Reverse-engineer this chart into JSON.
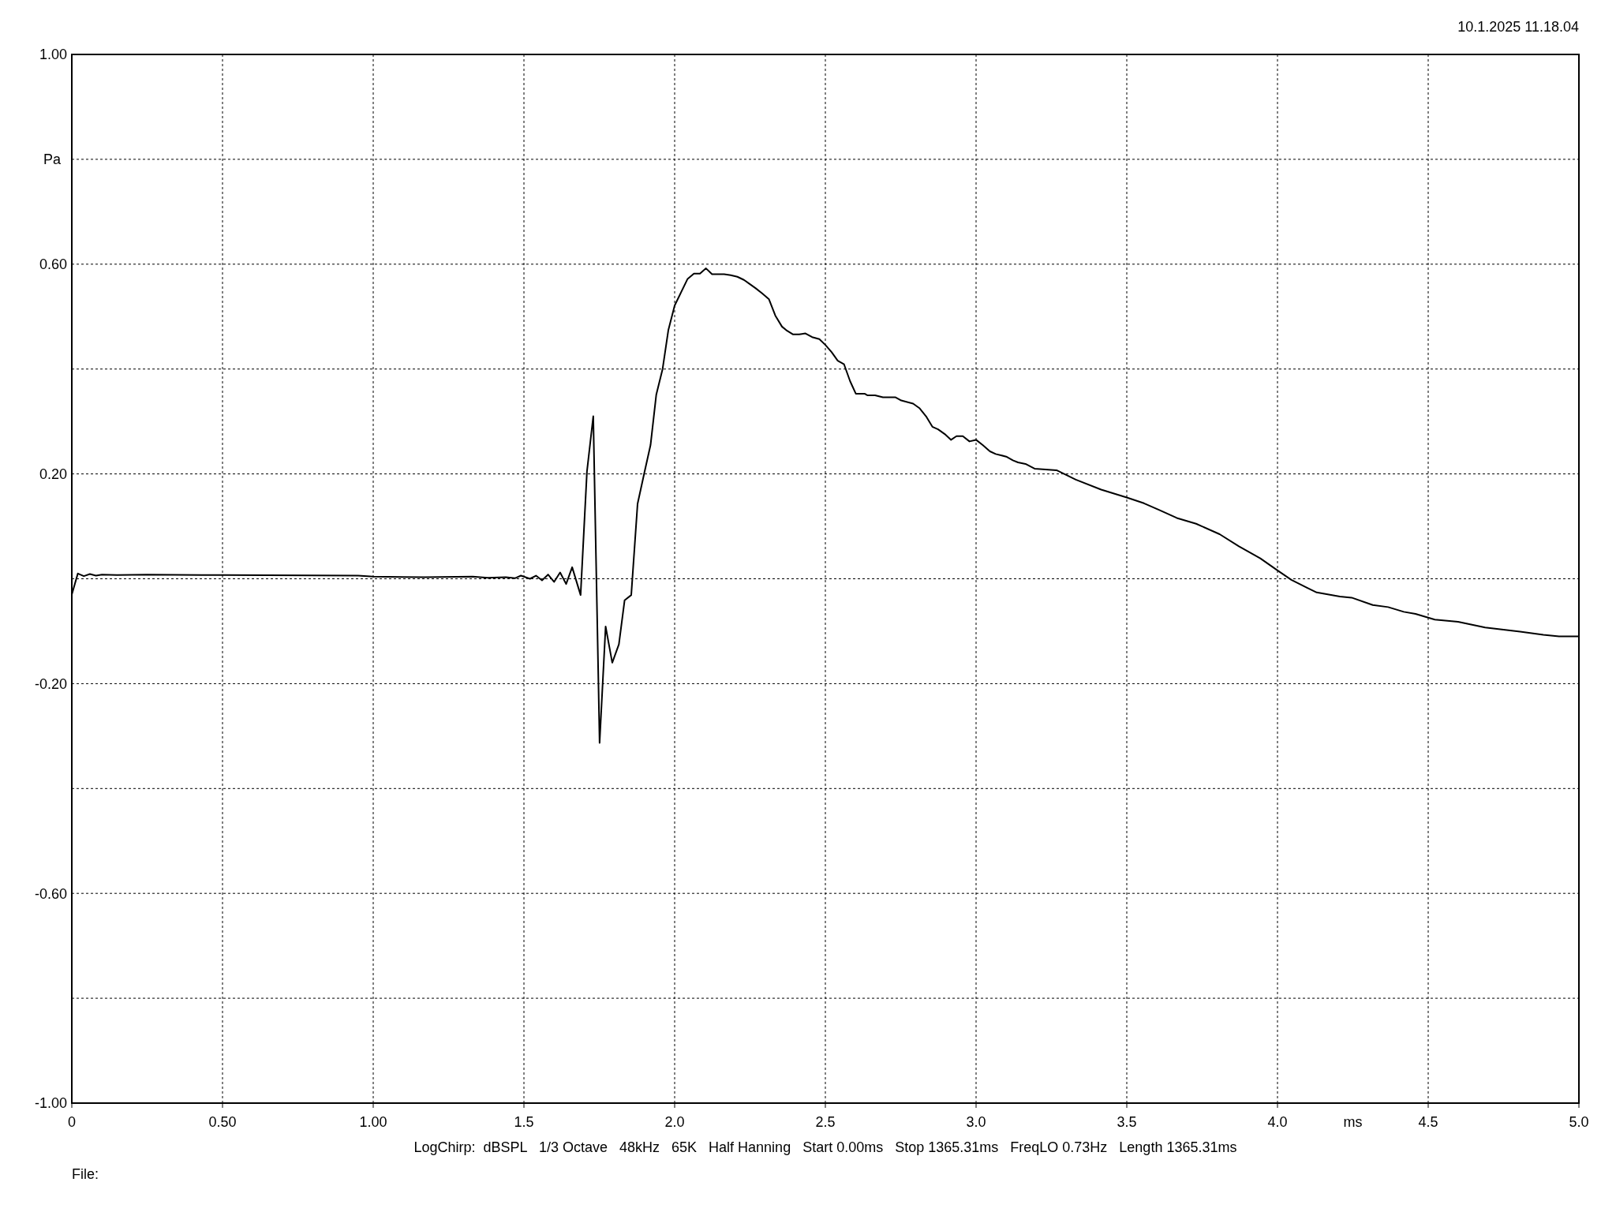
{
  "chart_data": {
    "type": "line",
    "annotations": [
      "10.1.2025 11.18.04",
      "LogChirp:  dBSPL   1/3 Octave   48kHz   65K   Half Hanning   Start 0.00ms   Stop 1365.31ms   FreqLO 0.73Hz   Length 1365.31ms",
      "File:"
    ],
    "xlabel": "ms",
    "ylabel": "Pa",
    "xlim": [
      0,
      5
    ],
    "ylim": [
      -1,
      1
    ],
    "xticks": [
      0,
      {
        "value": 0.5,
        "label": "0.50"
      },
      {
        "value": 1,
        "label": "1.00"
      },
      1.5,
      {
        "value": 2,
        "label": "2.0"
      },
      2.5,
      {
        "value": 3,
        "label": "3.0"
      },
      3.5,
      {
        "value": 4,
        "label": "4.0"
      },
      4.5,
      {
        "value": 5,
        "label": "5.0"
      }
    ],
    "yticks": [
      {
        "value": 1,
        "label": "1.00"
      },
      {
        "value": 0.8,
        "label": null
      },
      {
        "value": 0.6,
        "label": "0.60"
      },
      {
        "value": 0.4,
        "label": null
      },
      {
        "value": 0.2,
        "label": "0.20"
      },
      {
        "value": 0,
        "label": null
      },
      {
        "value": -0.2,
        "label": "-0.20"
      },
      {
        "value": -0.4,
        "label": null
      },
      {
        "value": -0.6,
        "label": "-0.60"
      },
      {
        "value": -0.8,
        "label": null
      },
      {
        "value": -1,
        "label": "-1.00"
      }
    ],
    "grid": true,
    "series": [
      {
        "color": "#000000",
        "x": [
          0,
          0.02,
          0.04,
          0.06,
          0.08,
          0.1,
          0.15,
          0.25,
          0.5,
          0.95,
          1.0,
          1.17,
          1.33,
          1.38,
          1.44,
          1.47,
          1.49,
          1.52,
          1.54,
          1.56,
          1.58,
          1.6,
          1.62,
          1.64,
          1.66,
          1.688,
          1.709,
          1.73,
          1.751,
          1.771,
          1.793,
          1.815,
          1.834,
          1.856,
          1.877,
          1.899,
          1.92,
          1.939,
          1.96,
          1.979,
          2.0,
          2.043,
          2.064,
          2.084,
          2.104,
          2.124,
          2.164,
          2.186,
          2.208,
          2.23,
          2.247,
          2.269,
          2.291,
          2.313,
          2.334,
          2.356,
          2.373,
          2.393,
          2.413,
          2.434,
          2.456,
          2.48,
          2.5,
          2.521,
          2.541,
          2.562,
          2.582,
          2.601,
          2.63,
          2.639,
          2.665,
          2.691,
          2.733,
          2.752,
          2.791,
          2.813,
          2.834,
          2.855,
          2.874,
          2.896,
          2.917,
          2.935,
          2.956,
          2.978,
          3.0,
          3.022,
          3.046,
          3.065,
          3.1,
          3.122,
          3.139,
          3.164,
          3.194,
          3.267,
          3.331,
          3.415,
          3.5,
          3.557,
          3.608,
          3.666,
          3.73,
          3.808,
          3.872,
          3.943,
          4.0,
          4.046,
          4.098,
          4.13,
          4.207,
          4.246,
          4.316,
          4.367,
          4.419,
          4.458,
          4.522,
          4.599,
          4.689,
          4.805,
          4.882,
          4.934,
          5.0
        ],
        "values": [
          -0.03,
          0.01,
          0.005,
          0.009,
          0.006,
          0.008,
          0.007,
          0.008,
          0.007,
          0.006,
          0.004,
          0.003,
          0.004,
          0.002,
          0.003,
          0.001,
          0.006,
          0.0,
          0.006,
          -0.003,
          0.008,
          -0.006,
          0.012,
          -0.01,
          0.022,
          -0.031,
          0.204,
          0.31,
          -0.313,
          -0.091,
          -0.16,
          -0.125,
          -0.041,
          -0.031,
          0.143,
          0.201,
          0.255,
          0.351,
          0.4,
          0.474,
          0.521,
          0.572,
          0.582,
          0.582,
          0.592,
          0.581,
          0.581,
          0.579,
          0.576,
          0.57,
          0.563,
          0.554,
          0.544,
          0.533,
          0.502,
          0.481,
          0.473,
          0.466,
          0.466,
          0.468,
          0.461,
          0.457,
          0.446,
          0.432,
          0.416,
          0.409,
          0.377,
          0.353,
          0.353,
          0.35,
          0.35,
          0.346,
          0.346,
          0.34,
          0.334,
          0.325,
          0.31,
          0.29,
          0.285,
          0.276,
          0.265,
          0.272,
          0.272,
          0.262,
          0.265,
          0.255,
          0.243,
          0.238,
          0.233,
          0.226,
          0.222,
          0.219,
          0.21,
          0.207,
          0.189,
          0.17,
          0.155,
          0.144,
          0.131,
          0.116,
          0.105,
          0.085,
          0.062,
          0.039,
          0.016,
          -0.002,
          -0.017,
          -0.026,
          -0.034,
          -0.036,
          -0.05,
          -0.054,
          -0.063,
          -0.067,
          -0.078,
          -0.082,
          -0.093,
          -0.101,
          -0.107,
          -0.11,
          -0.11
        ]
      }
    ]
  }
}
